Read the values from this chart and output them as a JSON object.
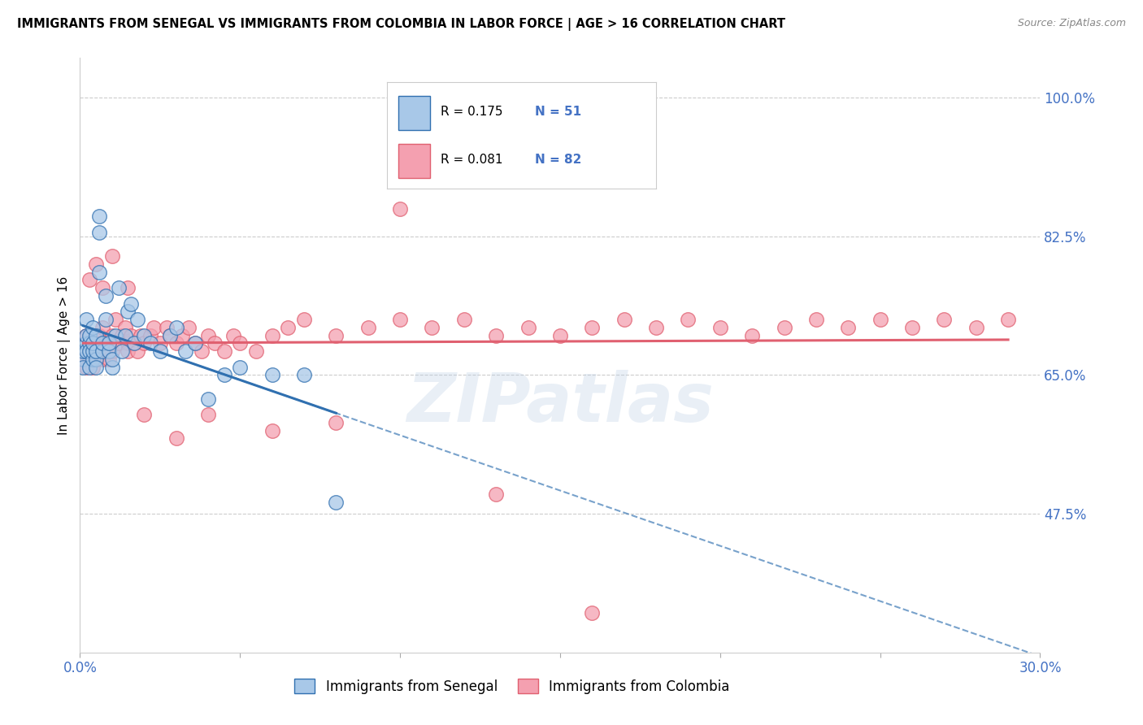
{
  "title": "IMMIGRANTS FROM SENEGAL VS IMMIGRANTS FROM COLOMBIA IN LABOR FORCE | AGE > 16 CORRELATION CHART",
  "source": "Source: ZipAtlas.com",
  "ylabel": "In Labor Force | Age > 16",
  "legend_label_1": "Immigrants from Senegal",
  "legend_label_2": "Immigrants from Colombia",
  "R1": 0.175,
  "N1": 51,
  "R2": 0.081,
  "N2": 82,
  "color_senegal": "#a8c8e8",
  "color_colombia": "#f4a0b0",
  "color_senegal_line": "#3070b0",
  "color_colombia_line": "#e06070",
  "color_axis_labels": "#4472c4",
  "xlim": [
    0.0,
    0.3
  ],
  "ylim": [
    0.3,
    1.05
  ],
  "y_ticks_right": [
    0.475,
    0.65,
    0.825,
    1.0
  ],
  "y_tick_labels_right": [
    "47.5%",
    "65.0%",
    "82.5%",
    "100.0%"
  ],
  "watermark": "ZIPatlas",
  "senegal_x": [
    0.001,
    0.001,
    0.001,
    0.002,
    0.002,
    0.002,
    0.002,
    0.003,
    0.003,
    0.003,
    0.003,
    0.004,
    0.004,
    0.004,
    0.004,
    0.005,
    0.005,
    0.005,
    0.005,
    0.006,
    0.006,
    0.006,
    0.007,
    0.007,
    0.008,
    0.008,
    0.009,
    0.009,
    0.01,
    0.01,
    0.011,
    0.012,
    0.013,
    0.014,
    0.015,
    0.016,
    0.017,
    0.018,
    0.02,
    0.022,
    0.025,
    0.028,
    0.03,
    0.033,
    0.036,
    0.04,
    0.045,
    0.05,
    0.06,
    0.07,
    0.08
  ],
  "senegal_y": [
    0.67,
    0.68,
    0.66,
    0.69,
    0.7,
    0.68,
    0.72,
    0.69,
    0.68,
    0.7,
    0.66,
    0.67,
    0.68,
    0.69,
    0.71,
    0.67,
    0.68,
    0.7,
    0.66,
    0.83,
    0.85,
    0.78,
    0.68,
    0.69,
    0.75,
    0.72,
    0.68,
    0.69,
    0.66,
    0.67,
    0.7,
    0.76,
    0.68,
    0.7,
    0.73,
    0.74,
    0.69,
    0.72,
    0.7,
    0.69,
    0.68,
    0.7,
    0.71,
    0.68,
    0.69,
    0.62,
    0.65,
    0.66,
    0.65,
    0.65,
    0.49
  ],
  "colombia_x": [
    0.001,
    0.002,
    0.002,
    0.003,
    0.003,
    0.004,
    0.005,
    0.005,
    0.006,
    0.006,
    0.007,
    0.007,
    0.008,
    0.008,
    0.009,
    0.01,
    0.01,
    0.011,
    0.012,
    0.013,
    0.014,
    0.015,
    0.015,
    0.016,
    0.017,
    0.018,
    0.019,
    0.02,
    0.022,
    0.023,
    0.025,
    0.027,
    0.028,
    0.03,
    0.032,
    0.034,
    0.036,
    0.038,
    0.04,
    0.042,
    0.045,
    0.048,
    0.05,
    0.055,
    0.06,
    0.065,
    0.07,
    0.08,
    0.09,
    0.1,
    0.11,
    0.12,
    0.13,
    0.14,
    0.15,
    0.16,
    0.17,
    0.18,
    0.19,
    0.2,
    0.21,
    0.22,
    0.23,
    0.24,
    0.25,
    0.26,
    0.27,
    0.28,
    0.29,
    0.003,
    0.005,
    0.007,
    0.01,
    0.015,
    0.02,
    0.03,
    0.04,
    0.06,
    0.08,
    0.1,
    0.13,
    0.16
  ],
  "colombia_y": [
    0.67,
    0.66,
    0.7,
    0.68,
    0.69,
    0.66,
    0.67,
    0.68,
    0.69,
    0.7,
    0.67,
    0.71,
    0.68,
    0.69,
    0.67,
    0.68,
    0.7,
    0.72,
    0.69,
    0.7,
    0.71,
    0.69,
    0.68,
    0.7,
    0.69,
    0.68,
    0.7,
    0.69,
    0.7,
    0.71,
    0.69,
    0.71,
    0.7,
    0.69,
    0.7,
    0.71,
    0.69,
    0.68,
    0.7,
    0.69,
    0.68,
    0.7,
    0.69,
    0.68,
    0.7,
    0.71,
    0.72,
    0.7,
    0.71,
    0.72,
    0.71,
    0.72,
    0.7,
    0.71,
    0.7,
    0.71,
    0.72,
    0.71,
    0.72,
    0.71,
    0.7,
    0.71,
    0.72,
    0.71,
    0.72,
    0.71,
    0.72,
    0.71,
    0.72,
    0.77,
    0.79,
    0.76,
    0.8,
    0.76,
    0.6,
    0.57,
    0.6,
    0.58,
    0.59,
    0.86,
    0.5,
    0.35
  ]
}
